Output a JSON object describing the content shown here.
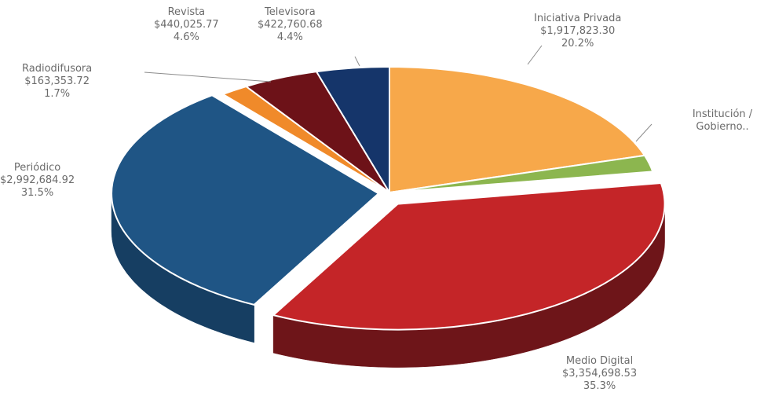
{
  "chart_data": {
    "type": "pie",
    "style": "3d-exploded",
    "slices": [
      {
        "name": "Iniciativa Privada",
        "value": 1917823.3,
        "percent": 20.2,
        "value_label": "$1,917,823.30",
        "percent_label": "20.2%",
        "color": "#f7a84a",
        "side_color": "#c97d28"
      },
      {
        "name": "Institución / Gobierno..",
        "value": null,
        "percent": 2.1,
        "value_label": "",
        "percent_label": "",
        "color": "#8cb64f",
        "side_color": "#5e8030"
      },
      {
        "name": "Medio Digital",
        "value": 3354698.53,
        "percent": 35.3,
        "value_label": "$3,354,698.53",
        "percent_label": "35.3%",
        "color": "#c42528",
        "side_color": "#6e1519"
      },
      {
        "name": "Periódico",
        "value": 2992684.92,
        "percent": 31.5,
        "value_label": "$2,992,684.92",
        "percent_label": "31.5%",
        "color": "#1f5585",
        "side_color": "#163e62"
      },
      {
        "name": "Radiodifusora",
        "value": 163353.72,
        "percent": 1.7,
        "value_label": "$163,353.72",
        "percent_label": "1.7%",
        "color": "#f08a2a",
        "side_color": "#b4611a"
      },
      {
        "name": "Revista",
        "value": 440025.77,
        "percent": 4.6,
        "value_label": "$440,025.77",
        "percent_label": "4.6%",
        "color": "#6d1218",
        "side_color": "#3e0a0d"
      },
      {
        "name": "Televisora",
        "value": 422760.68,
        "percent": 4.4,
        "value_label": "$422,760.68",
        "percent_label": "4.4%",
        "color": "#15356a",
        "side_color": "#0c2046"
      }
    ]
  }
}
